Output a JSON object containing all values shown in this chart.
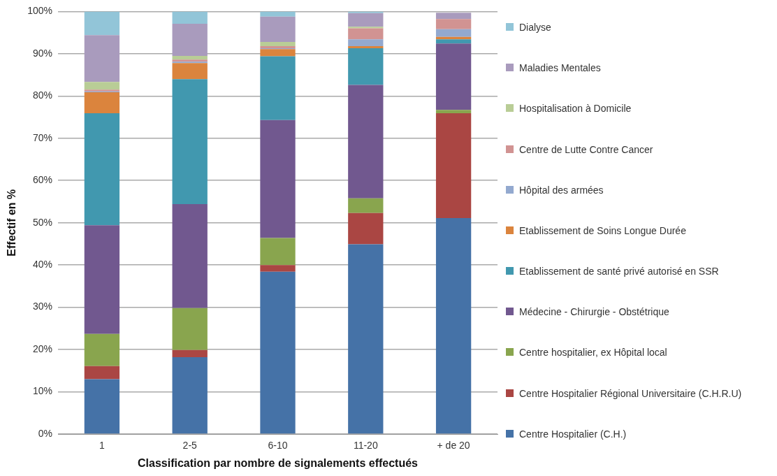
{
  "chart_data": {
    "type": "bar",
    "stacked": true,
    "xlabel": "Classification par nombre de signalements effectués",
    "ylabel": "Effectif en %",
    "categories": [
      "1",
      "2-5",
      "6-10",
      "11-20",
      "+ de 20"
    ],
    "series": [
      {
        "name": "Centre Hospitalier (C.H.)",
        "color": "#4572a7",
        "values": [
          13.0,
          18.2,
          38.4,
          44.9,
          51.1
        ]
      },
      {
        "name": "Centre Hospitalier Régional Universitaire (C.H.R.U)",
        "color": "#aa4643",
        "values": [
          3.1,
          1.7,
          1.6,
          7.4,
          24.8
        ]
      },
      {
        "name": "Centre hospitalier, ex Hôpital local",
        "color": "#89a54e",
        "values": [
          7.6,
          9.9,
          6.4,
          3.5,
          0.8
        ]
      },
      {
        "name": "Médecine - Chirurgie - Obstétrique",
        "color": "#71588f",
        "values": [
          25.7,
          24.6,
          27.9,
          26.8,
          15.7
        ]
      },
      {
        "name": "Etablissement de santé privé autorisé en SSR",
        "color": "#4198af",
        "values": [
          26.5,
          29.6,
          15.1,
          8.7,
          1.0
        ]
      },
      {
        "name": "Etablissement de Soins Longue Durée",
        "color": "#db843d",
        "values": [
          5.0,
          3.8,
          1.7,
          0.5,
          0.6
        ]
      },
      {
        "name": "Hôpital des armées",
        "color": "#93a9cf",
        "values": [
          0.2,
          0.3,
          0.2,
          1.6,
          1.8
        ]
      },
      {
        "name": "Centre de Lutte Contre Cancer",
        "color": "#d19392",
        "values": [
          0.4,
          0.5,
          0.5,
          2.6,
          2.4
        ]
      },
      {
        "name": "Hospitalisation à Domicile",
        "color": "#b9cd96",
        "values": [
          1.8,
          0.9,
          1.0,
          0.4,
          0
        ]
      },
      {
        "name": "Maladies Mentales",
        "color": "#a99bbd",
        "values": [
          11.1,
          7.6,
          6.0,
          3.2,
          1.5
        ]
      },
      {
        "name": "Dialyse",
        "color": "#92c5d8",
        "values": [
          5.6,
          2.9,
          1.2,
          0.4,
          null
        ]
      }
    ],
    "ylim": [
      0,
      100
    ],
    "yticks": [
      {
        "value": 0,
        "label": "0%"
      },
      {
        "value": 10,
        "label": "10%"
      },
      {
        "value": 20,
        "label": "20%"
      },
      {
        "value": 30,
        "label": "30%"
      },
      {
        "value": 40,
        "label": "40%"
      },
      {
        "value": 50,
        "label": "50%"
      },
      {
        "value": 60,
        "label": "60%"
      },
      {
        "value": 70,
        "label": "70%"
      },
      {
        "value": 80,
        "label": "80%"
      },
      {
        "value": 90,
        "label": "90%"
      },
      {
        "value": 100,
        "label": "100%"
      }
    ],
    "grid": "y",
    "legend": "right"
  }
}
